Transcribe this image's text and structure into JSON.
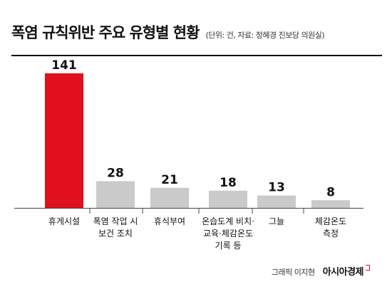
{
  "title": "폭염 규칙위반 주요 유형별 현황",
  "subtitle": "(단위: 건, 자료: 정혜경 진보당 의원실)",
  "credit": "그래픽 이지현",
  "brand": "아시아경제",
  "colors": {
    "highlight": "#e0101c",
    "bar": "#cacaca",
    "axis": "#444444",
    "text": "#111111"
  },
  "chart_data": {
    "type": "bar",
    "categories": [
      [
        "휴게시설"
      ],
      [
        "폭염 작업 시",
        "보건 조치"
      ],
      [
        "휴식부여"
      ],
      [
        "온습도계 비치·",
        "교육·체감온도",
        "기록 등"
      ],
      [
        "그늘"
      ],
      [
        "체감온도",
        "측정"
      ]
    ],
    "values": [
      141,
      28,
      21,
      18,
      13,
      8
    ],
    "highlight_index": 0,
    "ylim": [
      0,
      141
    ],
    "grid": false,
    "legend": "none"
  }
}
